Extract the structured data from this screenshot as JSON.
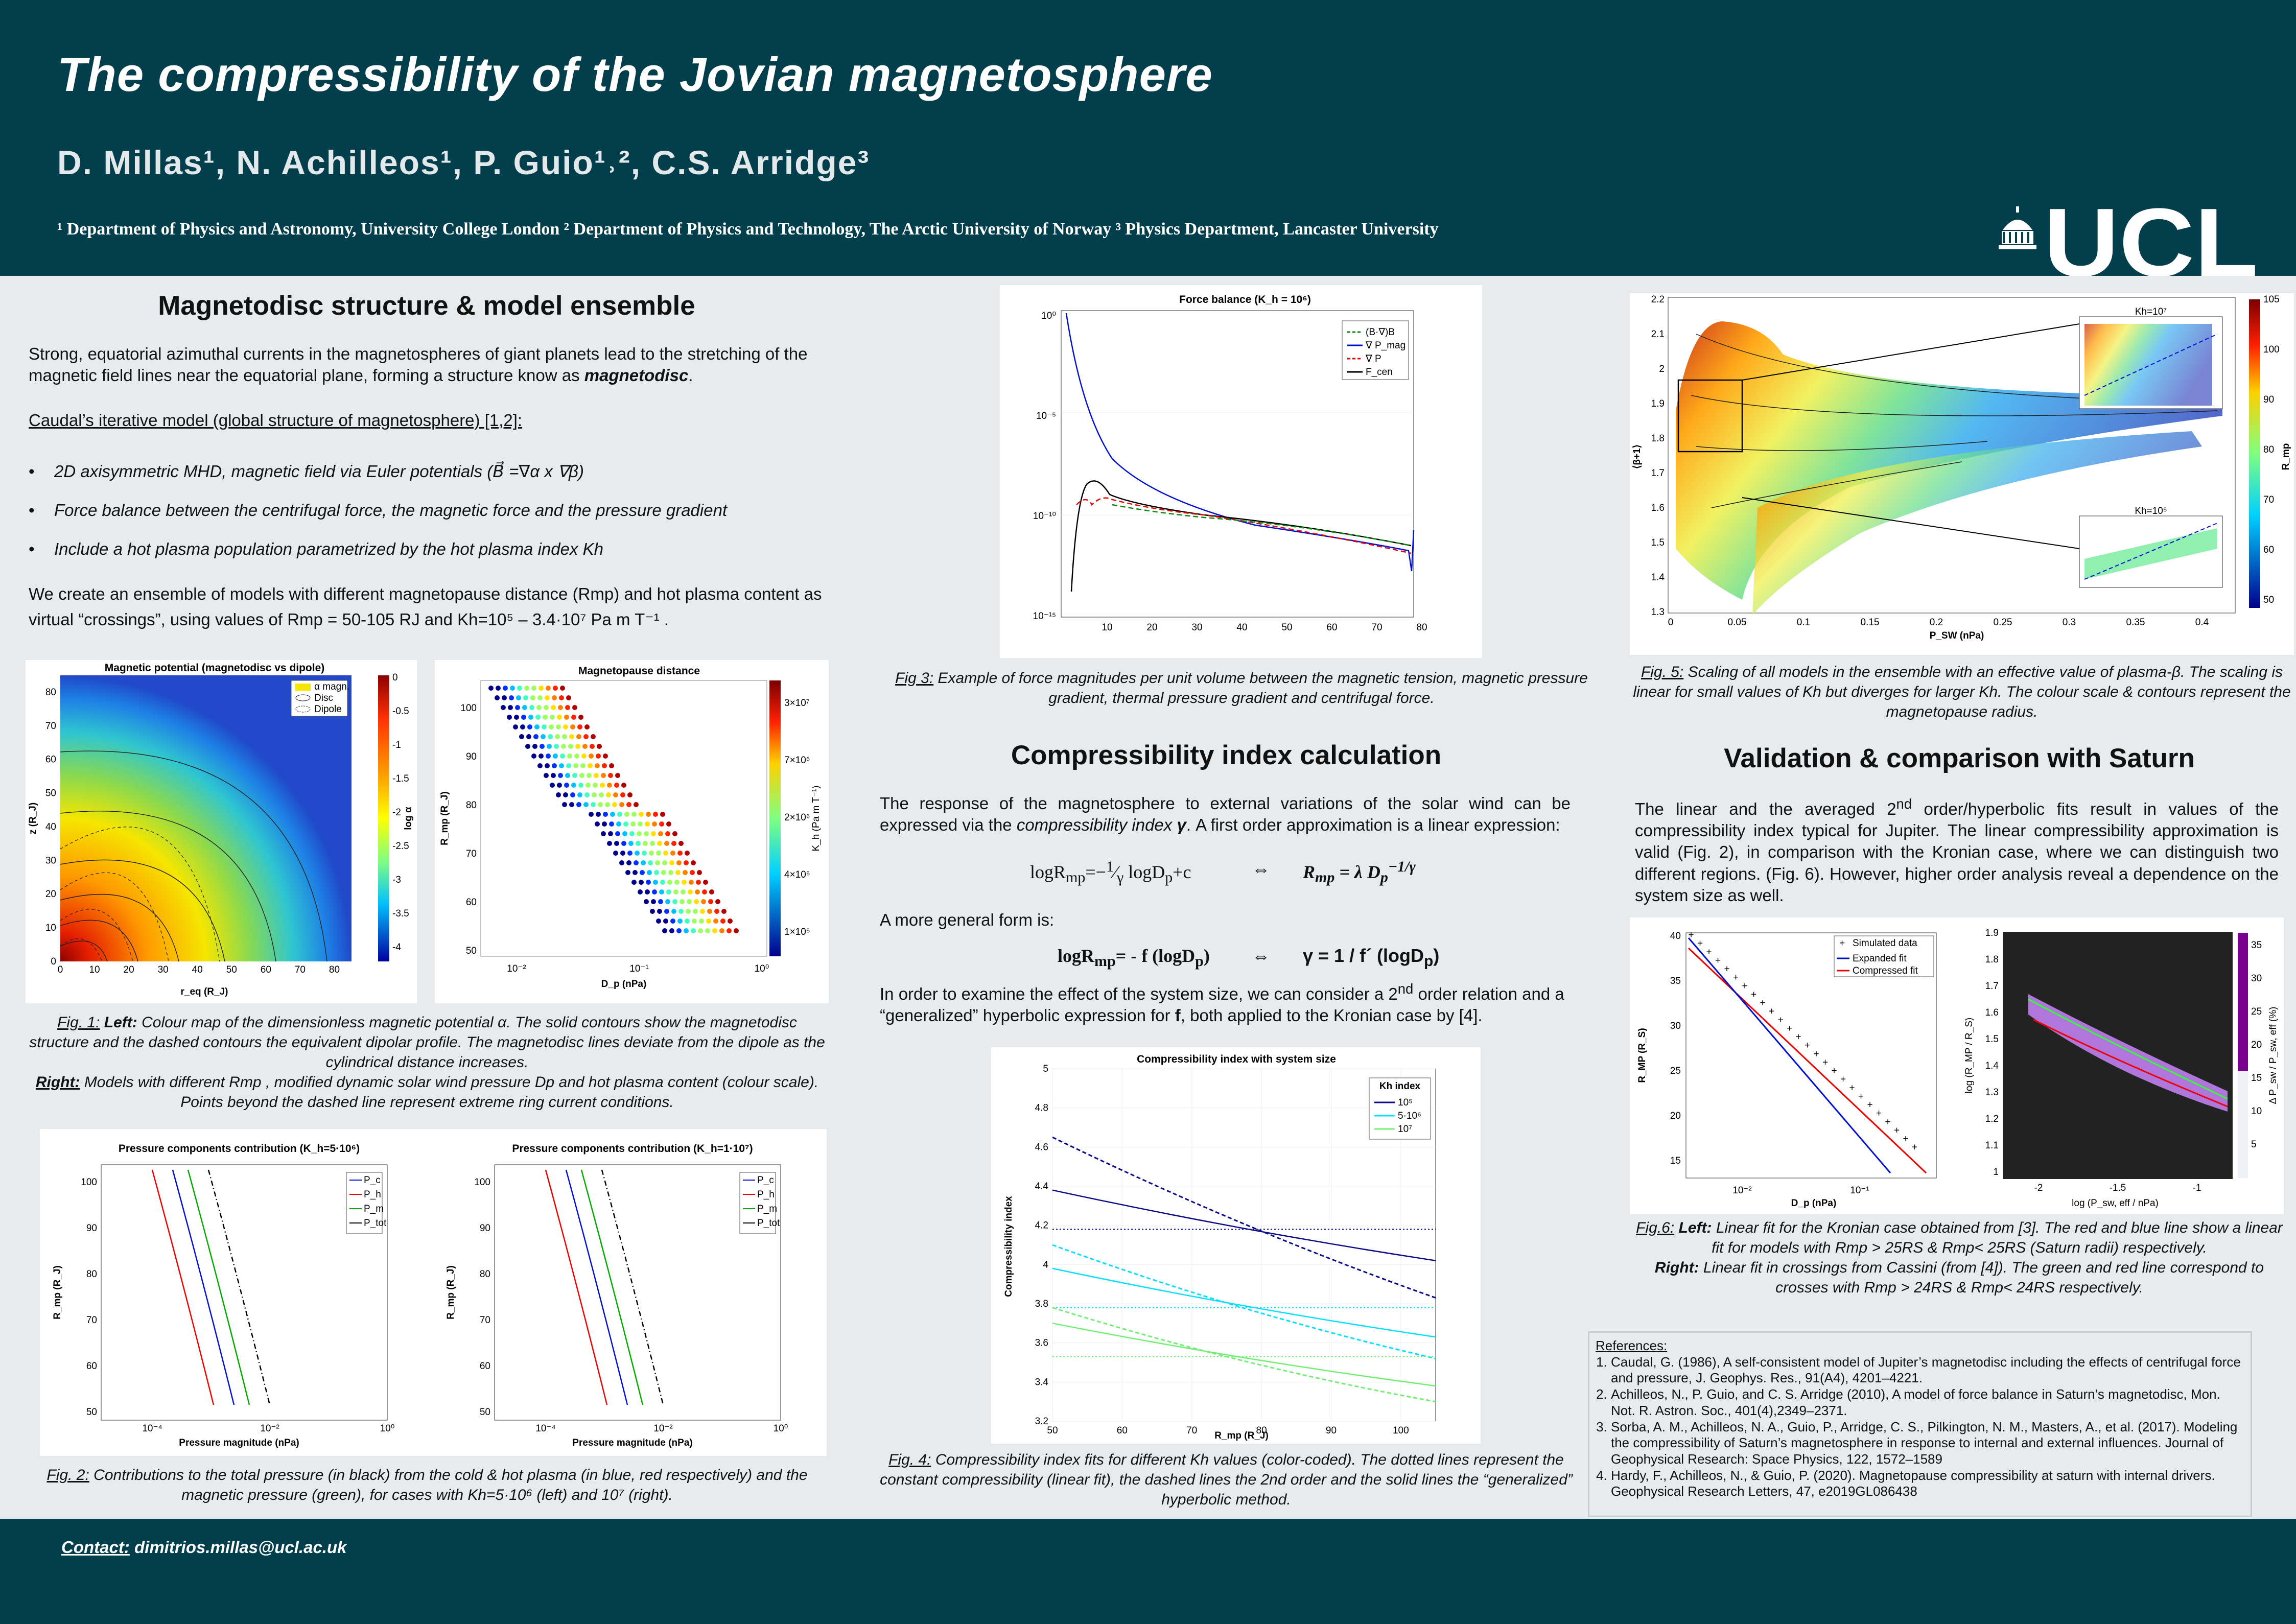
{
  "header": {
    "title": "The compressibility of the Jovian magnetosphere",
    "authors": "D. Millas¹, N. Achilleos¹, P. Guio¹˒², C.S. Arridge³",
    "affiliations": "¹ Department of Physics and Astronomy, University College London ² Department of Physics and Technology, The Arctic University of Norway ³ Physics Department, Lancaster University",
    "logo_text": "UCL"
  },
  "s1": {
    "heading": "Magnetodisc structure & model ensemble",
    "intro": "Strong, equatorial azimuthal currents in the magnetospheres of giant planets lead to the stretching of the magnetic field lines near the equatorial plane, forming a structure know as magnetodisc.",
    "model_label": "Caudal’s iterative model (global structure of magnetosphere) [1,2]:",
    "bullets": [
      "2D axisymmetric MHD, magnetic field via Euler potentials (B⃗ =∇α x ∇β)",
      "Force balance between the centrifugal force, the magnetic force and the pressure gradient",
      "Include a hot plasma population parametrized by the hot plasma index Kh"
    ],
    "ensemble": "We create an ensemble of models with different magnetopause distance (Rmp) and hot plasma content as virtual “crossings”, using values of Rmp = 50-105 RJ and Kh=10⁵ – 3.4·10⁷ Pa m T⁻¹ ."
  },
  "fig1a": {
    "title": "Magnetic potential (magnetodisc vs dipole)",
    "xlabel": "r_eq (R_J)",
    "ylabel": "z (R_J)",
    "cblabel": "log α",
    "legend": [
      "α magn.",
      "Disc",
      "Dipole"
    ],
    "xticks": [
      "0",
      "10",
      "20",
      "30",
      "40",
      "50",
      "60",
      "70",
      "80"
    ],
    "yticks": [
      "0",
      "10",
      "20",
      "30",
      "40",
      "50",
      "60",
      "70",
      "80"
    ],
    "cbticks": [
      "0",
      "-0.5",
      "-1",
      "-1.5",
      "-2",
      "-2.5",
      "-3",
      "-3.5",
      "-4"
    ]
  },
  "fig1b": {
    "title": "Magnetopause distance",
    "xlabel": "D_p (nPa)",
    "ylabel": "R_mp (R_J)",
    "cblabel": "K_h (Pa m T⁻¹)",
    "xticks": [
      "10⁻²",
      "10⁻¹",
      "10⁰"
    ],
    "yticks": [
      "100",
      "90",
      "80",
      "70",
      "60",
      "50"
    ],
    "cbticks": [
      "3×10⁷",
      "7×10⁶",
      "2×10⁶",
      "4×10⁵",
      "1×10⁵"
    ]
  },
  "fig1_caption": {
    "label": "Fig. 1:",
    "left": "Left:",
    "left_text": " Colour map of the dimensionless magnetic potential α. The solid contours show the magnetodisc structure and the dashed contours the equivalent dipolar profile. The magnetodisc lines deviate from the dipole as the cylindrical distance increases.",
    "right": "Right:",
    "right_text": " Models with different Rmp , modified dynamic solar wind pressure Dp and hot plasma content (colour scale). Points beyond the dashed line represent extreme ring current conditions."
  },
  "fig2a": {
    "title": "Pressure components contribution (K_h=5·10⁶)",
    "xlabel": "Pressure magnitude (nPa)",
    "ylabel": "R_mp (R_J)",
    "legend": [
      "P_c",
      "P_h",
      "P_m",
      "P_tot"
    ],
    "xticks": [
      "10⁻⁴",
      "10⁻²",
      "10⁰"
    ],
    "yticks": [
      "100",
      "90",
      "80",
      "70",
      "60",
      "50"
    ]
  },
  "fig2b": {
    "title": "Pressure components contribution (K_h=1·10⁷)",
    "xlabel": "Pressure magnitude (nPa)",
    "ylabel": "R_mp (R_J)",
    "legend": [
      "P_c",
      "P_h",
      "P_m",
      "P_tot"
    ],
    "xticks": [
      "10⁻⁴",
      "10⁻²",
      "10⁰"
    ],
    "yticks": [
      "100",
      "90",
      "80",
      "70",
      "60",
      "50"
    ]
  },
  "fig2_caption": {
    "label": "Fig. 2:",
    "text": " Contributions to the total pressure (in black) from the cold & hot plasma (in blue, red respectively) and the magnetic pressure (green), for cases with Kh=5·10⁶ (left) and 10⁷ (right)."
  },
  "fig3": {
    "title": "Force balance (K_h = 10⁶)",
    "legend": [
      "(B·∇)B",
      "∇ P_mag",
      "∇ P",
      "F_cen"
    ],
    "xticks": [
      "10",
      "20",
      "30",
      "40",
      "50",
      "60",
      "70",
      "80"
    ],
    "yticks": [
      "10⁰",
      "10⁻⁵",
      "10⁻¹⁰",
      "10⁻¹⁵"
    ],
    "caption_label": "Fig 3:",
    "caption": " Example of force magnitudes per unit volume between the magnetic tension, magnetic pressure gradient, thermal pressure gradient and centrifugal force."
  },
  "s2": {
    "heading": "Compressibility index calculation",
    "p1": "The response of the magnetosphere to external variations of the solar wind can be expressed via the compressibility index γ. A first order approximation is a linear expression:",
    "eq1a": "logRmp=−(1/γ) logDp+c",
    "eq_arrow": "⇔",
    "eq1b": "Rmp = λ Dp^(−1/γ)",
    "p2": "A more general form is:",
    "eq2a": "logRmp= - f (logDp)",
    "eq2b": "γ = 1 / f´ (logDp)",
    "p3": "In order to examine the effect of the system size, we can consider a 2nd order relation and a “generalized” hyperbolic expression for f, both applied to the Kronian case by [4]."
  },
  "fig4": {
    "title": "Compressibility index with system size",
    "xlabel": "R_mp (R_J)",
    "ylabel": "Compressibility index",
    "legend_title": "Kh index",
    "legend": [
      "10⁵",
      "5·10⁶",
      "10⁷"
    ],
    "xticks": [
      "50",
      "60",
      "70",
      "80",
      "90",
      "100"
    ],
    "yticks": [
      "5",
      "4.8",
      "4.6",
      "4.4",
      "4.2",
      "4",
      "3.8",
      "3.6",
      "3.4",
      "3.2"
    ],
    "caption_label": "Fig. 4:",
    "caption": " Compressibility index fits for different Kh values (color-coded). The dotted lines represent the constant compressibility (linear fit), the dashed lines the 2nd order and the solid lines the “generalized” hyperbolic method."
  },
  "fig5": {
    "xlabel": "P_SW (nPa)",
    "ylabel": "⟨β+1⟩",
    "cblabel": "R_mp",
    "inset1_title": "Kh=10⁷",
    "inset2_title": "Kh=10⁵",
    "xticks": [
      "0",
      "0.05",
      "0.1",
      "0.15",
      "0.2",
      "0.25",
      "0.3",
      "0.35",
      "0.4"
    ],
    "yticks": [
      "2.2",
      "2.1",
      "2",
      "1.9",
      "1.8",
      "1.7",
      "1.6",
      "1.5",
      "1.4",
      "1.3"
    ],
    "cbticks": [
      "105",
      "100",
      "90",
      "80",
      "70",
      "60",
      "50"
    ],
    "caption_label": "Fig. 5:",
    "caption": " Scaling of all models in the ensemble with an effective value of plasma-β. The scaling is linear for small values of Kh but diverges for larger Kh. The colour scale  & contours represent the magnetopause radius."
  },
  "s3": {
    "heading": "Validation & comparison with Saturn",
    "text": "The linear and the averaged 2nd order/hyperbolic fits result in values of the compressibility index typical for Jupiter. The linear compressibility approximation is valid (Fig. 2), in comparison with the Kronian case, where we can distinguish two different regions. (Fig. 6). However, higher order analysis reveal a dependence on the system size as well."
  },
  "fig6a": {
    "legend": [
      "Simulated data",
      "Expanded fit",
      "Compressed fit"
    ],
    "xlabel": "D_p (nPa)",
    "ylabel": "R_MP (R_S)",
    "xticks": [
      "10⁻²",
      "10⁻¹"
    ],
    "yticks": [
      "40",
      "35",
      "30",
      "25",
      "20",
      "15"
    ]
  },
  "fig6b": {
    "xlabel": "log (P_sw, eff / nPa)",
    "ylabel": "log (R_MP / R_S)",
    "cblabel": "Δ P_sw / P_sw, eff (%)",
    "xticks": [
      "-2",
      "-1.5",
      "-1"
    ],
    "yticks": [
      "1.9",
      "1.8",
      "1.7",
      "1.6",
      "1.5",
      "1.4",
      "1.3",
      "1.2",
      "1.1",
      "1"
    ],
    "cbticks": [
      "35",
      "30",
      "25",
      "20",
      "15",
      "10",
      "5"
    ]
  },
  "fig6_caption": {
    "label": "Fig.6:",
    "left": "Left:",
    "left_text": " Linear fit for the Kronian case obtained from [3]. The red and blue line show a linear fit for models with Rmp > 25RS & Rmp< 25RS (Saturn radii) respectively.",
    "right": "Right:",
    "right_text": " Linear fit in crossings from Cassini (from [4]). The green and red line correspond to crosses with Rmp > 24RS & Rmp< 24RS respectively."
  },
  "references": {
    "heading": "References:",
    "items": [
      "Caudal, G. (1986), A self-consistent model of Jupiter’s magnetodisc including the effects of centrifugal force and pressure, J. Geophys. Res., 91(A4), 4201–4221.",
      "Achilleos, N., P. Guio, and C. S. Arridge (2010), A model of force balance in Saturn’s magnetodisc, Mon. Not. R. Astron. Soc., 401(4),2349–2371.",
      "Sorba, A. M., Achilleos, N. A., Guio, P., Arridge, C. S., Pilkington, N. M., Masters, A., et al. (2017). Modeling the compressibility of  Saturn’s magnetosphere in response to internal and external influences. Journal of Geophysical Research: Space Physics, 122, 1572–1589",
      "Hardy, F., Achilleos, N., & Guio, P. (2020). Magnetopause compressibility at saturn with internal drivers. Geophysical Research Letters, 47, e2019GL086438"
    ]
  },
  "footer": {
    "contact_label": "Contact:",
    "email": "dimitrios.millas@ucl.ac.uk"
  },
  "chart_data": [
    {
      "type": "line",
      "title": "Compressibility index with system size",
      "xlabel": "R_mp (R_J)",
      "ylabel": "Compressibility index",
      "ylim": [
        3.2,
        5
      ],
      "xlim": [
        50,
        105
      ],
      "series": [
        {
          "name": "10⁵",
          "linear": 4.18,
          "second_order": {
            "x": [
              50,
              105
            ],
            "y": [
              4.65,
              3.83
            ]
          },
          "hyperbolic": {
            "x": [
              50,
              105
            ],
            "y": [
              4.38,
              4.02
            ]
          }
        },
        {
          "name": "5·10⁶",
          "linear": 3.78,
          "second_order": {
            "x": [
              50,
              105
            ],
            "y": [
              4.1,
              3.52
            ]
          },
          "hyperbolic": {
            "x": [
              50,
              105
            ],
            "y": [
              3.98,
              3.63
            ]
          }
        },
        {
          "name": "10⁷",
          "linear": 3.53,
          "second_order": {
            "x": [
              50,
              105
            ],
            "y": [
              3.78,
              3.3
            ]
          },
          "hyperbolic": {
            "x": [
              50,
              105
            ],
            "y": [
              3.7,
              3.38
            ]
          }
        }
      ]
    }
  ]
}
